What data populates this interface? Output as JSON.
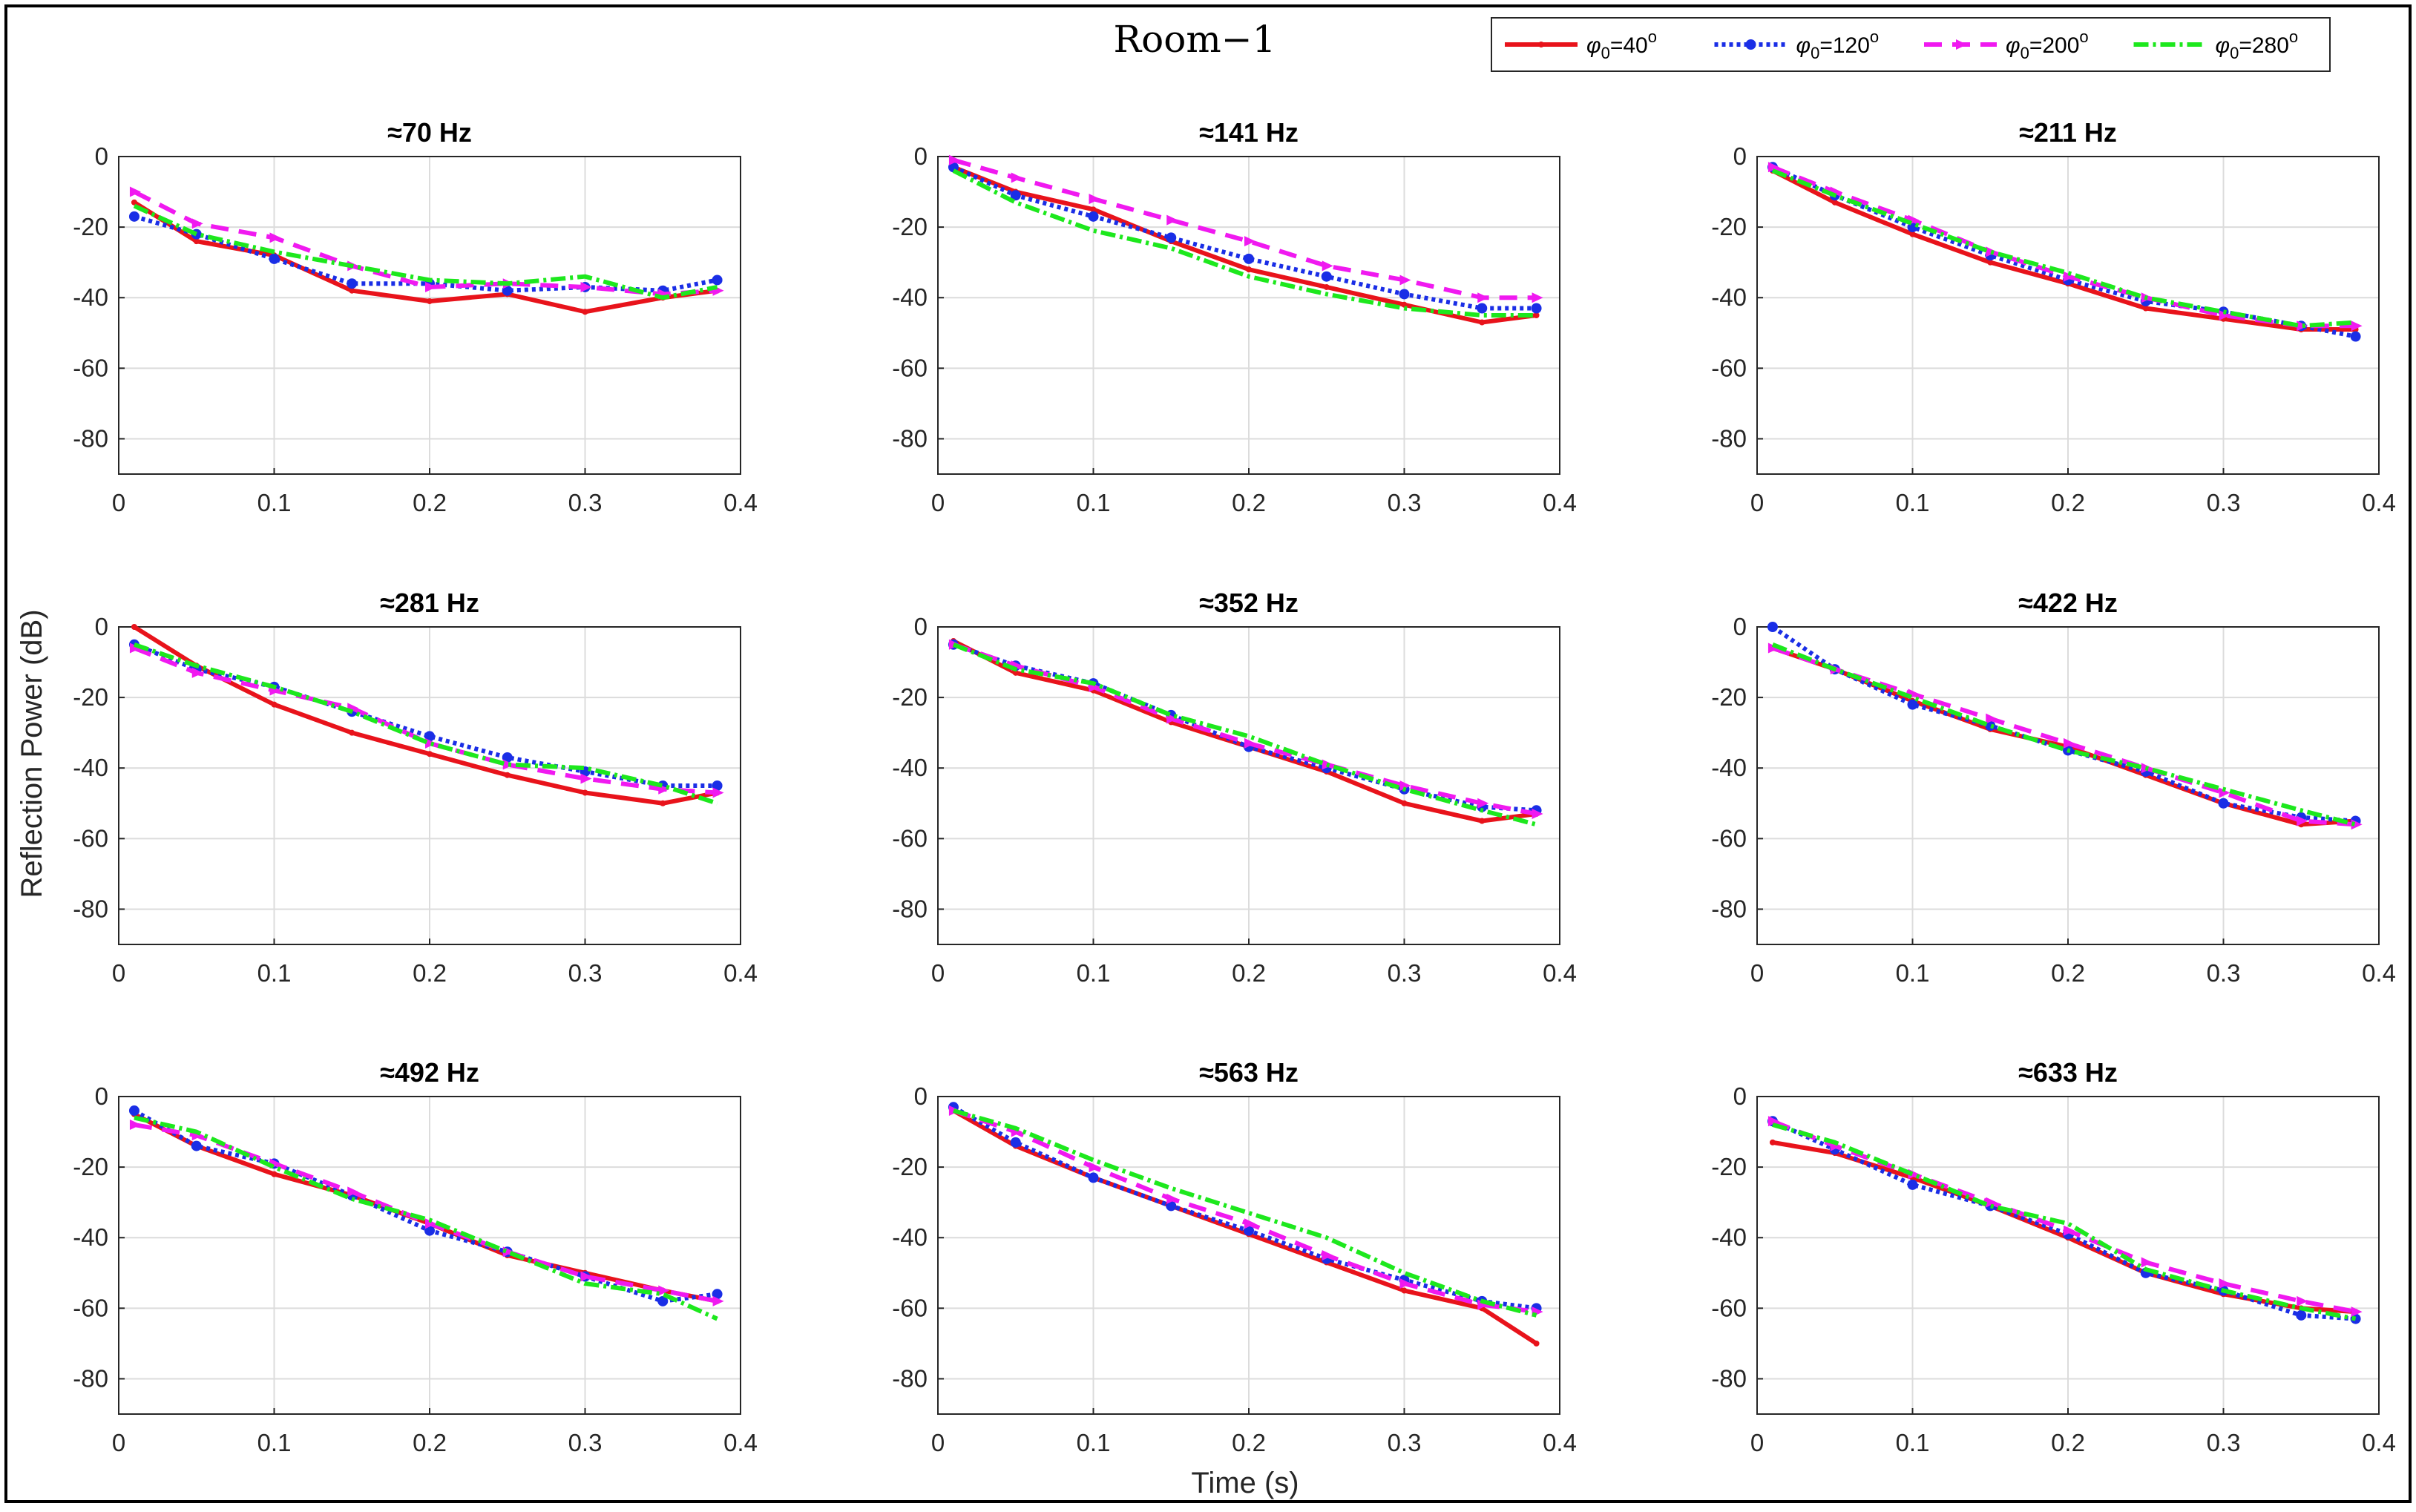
{
  "chart_data": {
    "type": "line",
    "title": "Room−1",
    "xlabel": "Time (s)",
    "ylabel": "Reflection Power (dB)",
    "xlim": [
      0,
      0.4
    ],
    "ylim": [
      -90,
      0
    ],
    "xticks": [
      "0",
      "0.1",
      "0.2",
      "0.3",
      "0.4"
    ],
    "yticks": [
      "0",
      "-20",
      "-40",
      "-60",
      "-80"
    ],
    "grid": true,
    "legend_position": "top-right",
    "series_styles": [
      {
        "name": "φ₀=40°",
        "label_main": "φ",
        "label_sub": "0",
        "label_rest": "=40",
        "label_sup": "o",
        "color": "#e8131b",
        "dash": "",
        "marker": "dot-small"
      },
      {
        "name": "φ₀=120°",
        "label_main": "φ",
        "label_sub": "0",
        "label_rest": "=120",
        "label_sup": "o",
        "color": "#1a2ee6",
        "dash": "5,5",
        "marker": "dot"
      },
      {
        "name": "φ₀=200°",
        "label_main": "φ",
        "label_sub": "0",
        "label_rest": "=200",
        "label_sup": "o",
        "color": "#f019f0",
        "dash": "24,14",
        "marker": "triangle"
      },
      {
        "name": "φ₀=280°",
        "label_main": "φ",
        "label_sub": "0",
        "label_rest": "=280",
        "label_sup": "o",
        "color": "#1de81d",
        "dash": "20,6,4,6",
        "marker": "none"
      }
    ],
    "panels": [
      {
        "title": "≈70 Hz",
        "x": [
          0.01,
          0.05,
          0.1,
          0.15,
          0.2,
          0.25,
          0.3,
          0.35,
          0.385
        ],
        "series": [
          [
            -13,
            -24,
            -28,
            -38,
            -41,
            -39,
            -44,
            -40,
            -38
          ],
          [
            -17,
            -22,
            -29,
            -36,
            -36,
            -38,
            -37,
            -38,
            -35
          ],
          [
            -10,
            -19,
            -23,
            -31,
            -37,
            -36,
            -37,
            -39,
            -38
          ],
          [
            -14,
            -22,
            -27,
            -31,
            -35,
            -36,
            -34,
            -40,
            -37
          ]
        ]
      },
      {
        "title": "≈141 Hz",
        "x": [
          0.01,
          0.05,
          0.1,
          0.15,
          0.2,
          0.25,
          0.3,
          0.35,
          0.385
        ],
        "series": [
          [
            -3,
            -10,
            -15,
            -24,
            -32,
            -37,
            -42,
            -47,
            -45
          ],
          [
            -3,
            -11,
            -17,
            -23,
            -29,
            -34,
            -39,
            -43,
            -43
          ],
          [
            -1,
            -6,
            -12,
            -18,
            -24,
            -31,
            -35,
            -40,
            -40
          ],
          [
            -4,
            -13,
            -21,
            -26,
            -34,
            -39,
            -43,
            -45,
            -45
          ]
        ]
      },
      {
        "title": "≈211 Hz",
        "x": [
          0.01,
          0.05,
          0.1,
          0.15,
          0.2,
          0.25,
          0.3,
          0.35,
          0.385
        ],
        "series": [
          [
            -4,
            -13,
            -22,
            -30,
            -36,
            -43,
            -46,
            -49,
            -49
          ],
          [
            -3,
            -11,
            -20,
            -28,
            -35,
            -41,
            -44,
            -48,
            -51
          ],
          [
            -3,
            -10,
            -18,
            -27,
            -34,
            -40,
            -45,
            -48,
            -48
          ],
          [
            -4,
            -11,
            -19,
            -27,
            -33,
            -40,
            -44,
            -48,
            -47
          ]
        ]
      },
      {
        "title": "≈281 Hz",
        "x": [
          0.01,
          0.05,
          0.1,
          0.15,
          0.2,
          0.25,
          0.3,
          0.35,
          0.385
        ],
        "series": [
          [
            0,
            -11,
            -22,
            -30,
            -36,
            -42,
            -47,
            -50,
            -47
          ],
          [
            -5,
            -12,
            -17,
            -24,
            -31,
            -37,
            -41,
            -45,
            -45
          ],
          [
            -6,
            -13,
            -18,
            -23,
            -33,
            -39,
            -43,
            -46,
            -47
          ],
          [
            -5,
            -11,
            -17,
            -24,
            -33,
            -39,
            -40,
            -45,
            -50
          ]
        ]
      },
      {
        "title": "≈352 Hz",
        "x": [
          0.01,
          0.05,
          0.1,
          0.15,
          0.2,
          0.25,
          0.3,
          0.35,
          0.385
        ],
        "series": [
          [
            -4,
            -13,
            -18,
            -27,
            -34,
            -41,
            -50,
            -55,
            -53
          ],
          [
            -5,
            -11,
            -16,
            -25,
            -34,
            -40,
            -46,
            -51,
            -52
          ],
          [
            -5,
            -11,
            -17,
            -26,
            -33,
            -39,
            -45,
            -50,
            -53
          ],
          [
            -5,
            -12,
            -16,
            -25,
            -31,
            -39,
            -46,
            -52,
            -56
          ]
        ]
      },
      {
        "title": "≈422 Hz",
        "x": [
          0.01,
          0.05,
          0.1,
          0.15,
          0.2,
          0.25,
          0.3,
          0.35,
          0.385
        ],
        "series": [
          [
            -6,
            -12,
            -21,
            -29,
            -34,
            -42,
            -50,
            -56,
            -55
          ],
          [
            0,
            -12,
            -22,
            -28,
            -35,
            -41,
            -50,
            -54,
            -55
          ],
          [
            -6,
            -12,
            -19,
            -26,
            -33,
            -40,
            -47,
            -55,
            -56
          ],
          [
            -5,
            -12,
            -20,
            -28,
            -35,
            -40,
            -46,
            -52,
            -56
          ]
        ]
      },
      {
        "title": "≈492 Hz",
        "x": [
          0.01,
          0.05,
          0.1,
          0.15,
          0.2,
          0.25,
          0.3,
          0.35,
          0.385
        ],
        "series": [
          [
            -5,
            -14,
            -22,
            -28,
            -36,
            -45,
            -50,
            -55,
            -58
          ],
          [
            -4,
            -14,
            -19,
            -28,
            -38,
            -44,
            -51,
            -58,
            -56
          ],
          [
            -8,
            -11,
            -19,
            -27,
            -36,
            -44,
            -51,
            -55,
            -58
          ],
          [
            -6,
            -10,
            -20,
            -29,
            -35,
            -44,
            -53,
            -56,
            -63
          ]
        ]
      },
      {
        "title": "≈563 Hz",
        "x": [
          0.01,
          0.05,
          0.1,
          0.15,
          0.2,
          0.25,
          0.3,
          0.35,
          0.385
        ],
        "series": [
          [
            -4,
            -14,
            -23,
            -31,
            -39,
            -47,
            -55,
            -60,
            -70
          ],
          [
            -3,
            -13,
            -23,
            -31,
            -38,
            -46,
            -52,
            -58,
            -60
          ],
          [
            -4,
            -10,
            -20,
            -29,
            -36,
            -45,
            -53,
            -59,
            -61
          ],
          [
            -4,
            -9,
            -18,
            -26,
            -33,
            -40,
            -50,
            -58,
            -62
          ]
        ]
      },
      {
        "title": "≈633 Hz",
        "x": [
          0.01,
          0.05,
          0.1,
          0.15,
          0.2,
          0.25,
          0.3,
          0.35,
          0.385
        ],
        "series": [
          [
            -13,
            -16,
            -23,
            -31,
            -40,
            -50,
            -56,
            -60,
            -61
          ],
          [
            -7,
            -15,
            -25,
            -31,
            -39,
            -50,
            -55,
            -62,
            -63
          ],
          [
            -7,
            -14,
            -22,
            -30,
            -38,
            -47,
            -53,
            -58,
            -61
          ],
          [
            -8,
            -13,
            -22,
            -31,
            -36,
            -49,
            -55,
            -60,
            -63
          ]
        ]
      }
    ]
  }
}
